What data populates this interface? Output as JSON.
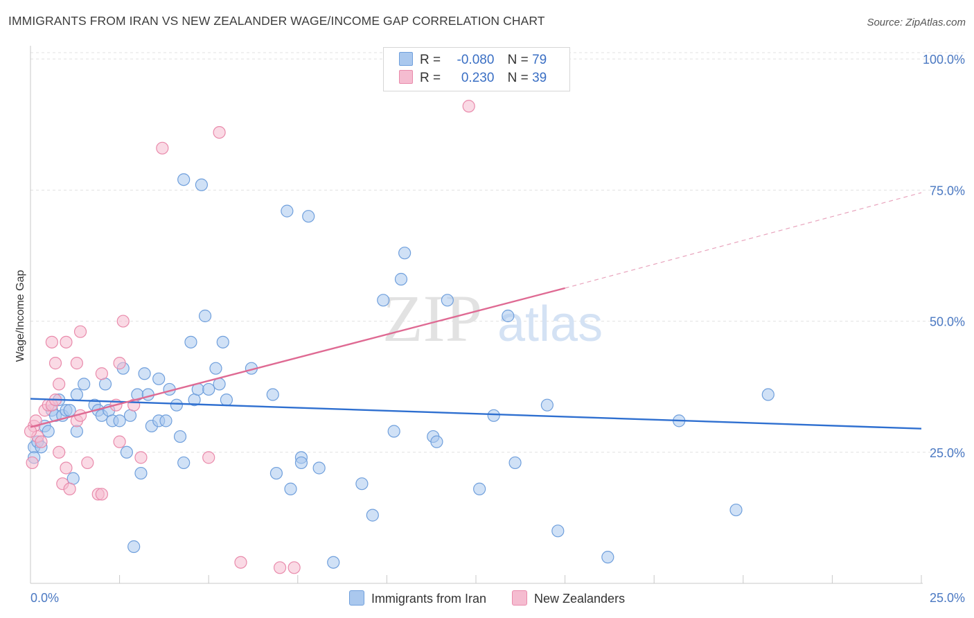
{
  "title": "IMMIGRANTS FROM IRAN VS NEW ZEALANDER WAGE/INCOME GAP CORRELATION CHART",
  "source": "Source: ZipAtlas.com",
  "watermark": {
    "zip": "ZIP",
    "atlas": "atlas"
  },
  "legend": {
    "rows": [
      {
        "r_label": "R =",
        "r_value": "-0.080",
        "n_label": "N =",
        "n_value": "79",
        "color": "#aac8ee",
        "border": "#6f9fdc"
      },
      {
        "r_label": "R =",
        "r_value": "0.230",
        "n_label": "N =",
        "n_value": "39",
        "color": "#f5bcd0",
        "border": "#e98aab"
      }
    ]
  },
  "bottom_legend": [
    {
      "label": "Immigrants from Iran",
      "color": "#aac8ee",
      "border": "#6f9fdc"
    },
    {
      "label": "New Zealanders",
      "color": "#f5bcd0",
      "border": "#e98aab"
    }
  ],
  "chart_data": {
    "type": "scatter",
    "title": "IMMIGRANTS FROM IRAN VS NEW ZEALANDER WAGE/INCOME GAP CORRELATION CHART",
    "xlabel": "",
    "ylabel": "Wage/Income Gap",
    "xlim": [
      0,
      25
    ],
    "ylim": [
      0,
      102
    ],
    "x_tick_labels": [
      "0.0%",
      "25.0%"
    ],
    "y_ticks": [
      25,
      50,
      75,
      100
    ],
    "y_tick_labels": [
      "25.0%",
      "50.0%",
      "75.0%",
      "100.0%"
    ],
    "grid": true,
    "series": [
      {
        "name": "Immigrants from Iran",
        "color": "#6f9fdc",
        "fill": "#aac8ee",
        "points": [
          [
            0.1,
            26
          ],
          [
            0.2,
            27
          ],
          [
            0.3,
            26
          ],
          [
            0.4,
            30
          ],
          [
            0.5,
            29
          ],
          [
            0.6,
            33
          ],
          [
            0.7,
            32
          ],
          [
            0.8,
            35
          ],
          [
            0.9,
            32
          ],
          [
            1.0,
            33
          ],
          [
            1.1,
            33
          ],
          [
            1.2,
            20
          ],
          [
            1.3,
            29
          ],
          [
            1.3,
            36
          ],
          [
            1.5,
            38
          ],
          [
            1.8,
            34
          ],
          [
            1.9,
            33
          ],
          [
            2.0,
            32
          ],
          [
            2.1,
            38
          ],
          [
            2.2,
            33
          ],
          [
            2.3,
            31
          ],
          [
            2.5,
            31
          ],
          [
            2.6,
            41
          ],
          [
            2.7,
            25
          ],
          [
            2.8,
            32
          ],
          [
            2.9,
            7
          ],
          [
            3.0,
            36
          ],
          [
            3.1,
            21
          ],
          [
            3.2,
            40
          ],
          [
            3.3,
            36
          ],
          [
            3.4,
            30
          ],
          [
            3.6,
            31
          ],
          [
            3.6,
            39
          ],
          [
            3.8,
            31
          ],
          [
            3.9,
            37
          ],
          [
            4.1,
            34
          ],
          [
            4.2,
            28
          ],
          [
            4.3,
            23
          ],
          [
            4.3,
            77
          ],
          [
            4.5,
            46
          ],
          [
            4.6,
            35
          ],
          [
            4.7,
            37
          ],
          [
            4.8,
            76
          ],
          [
            4.9,
            51
          ],
          [
            5.0,
            37
          ],
          [
            5.2,
            41
          ],
          [
            5.3,
            38
          ],
          [
            5.4,
            46
          ],
          [
            5.5,
            35
          ],
          [
            6.2,
            41
          ],
          [
            6.8,
            36
          ],
          [
            6.9,
            21
          ],
          [
            7.2,
            71
          ],
          [
            7.3,
            18
          ],
          [
            7.6,
            24
          ],
          [
            7.6,
            23
          ],
          [
            7.8,
            70
          ],
          [
            8.1,
            22
          ],
          [
            8.5,
            4
          ],
          [
            9.3,
            19
          ],
          [
            9.6,
            13
          ],
          [
            9.9,
            54
          ],
          [
            10.2,
            29
          ],
          [
            10.4,
            58
          ],
          [
            10.5,
            63
          ],
          [
            11.3,
            28
          ],
          [
            11.4,
            27
          ],
          [
            11.7,
            54
          ],
          [
            12.6,
            18
          ],
          [
            13.0,
            32
          ],
          [
            13.4,
            51
          ],
          [
            13.6,
            23
          ],
          [
            14.5,
            34
          ],
          [
            14.8,
            10
          ],
          [
            16.2,
            5
          ],
          [
            18.2,
            31
          ],
          [
            19.8,
            14
          ],
          [
            20.7,
            36
          ],
          [
            0.1,
            24
          ]
        ]
      },
      {
        "name": "New Zealanders",
        "color": "#e98aab",
        "fill": "#f5bcd0",
        "points": [
          [
            0.05,
            23
          ],
          [
            0.1,
            30
          ],
          [
            0.15,
            31
          ],
          [
            0.2,
            28
          ],
          [
            0.3,
            27
          ],
          [
            0.4,
            33
          ],
          [
            0.5,
            34
          ],
          [
            0.6,
            34
          ],
          [
            0.6,
            46
          ],
          [
            0.7,
            35
          ],
          [
            0.7,
            42
          ],
          [
            0.8,
            25
          ],
          [
            0.8,
            38
          ],
          [
            0.9,
            19
          ],
          [
            1.0,
            46
          ],
          [
            1.0,
            22
          ],
          [
            1.1,
            18
          ],
          [
            1.3,
            42
          ],
          [
            1.3,
            31
          ],
          [
            1.4,
            32
          ],
          [
            1.4,
            48
          ],
          [
            1.6,
            23
          ],
          [
            1.9,
            17
          ],
          [
            2.0,
            17
          ],
          [
            2.0,
            40
          ],
          [
            2.4,
            34
          ],
          [
            2.5,
            42
          ],
          [
            2.5,
            27
          ],
          [
            2.6,
            50
          ],
          [
            2.9,
            34
          ],
          [
            3.1,
            24
          ],
          [
            3.7,
            83
          ],
          [
            5.0,
            24
          ],
          [
            5.3,
            86
          ],
          [
            5.9,
            4
          ],
          [
            7.0,
            3
          ],
          [
            7.4,
            3
          ],
          [
            12.3,
            91
          ],
          [
            0.0,
            29
          ]
        ]
      }
    ],
    "trend_lines": [
      {
        "series": "Immigrants from Iran",
        "x": [
          0,
          25
        ],
        "y": [
          35.2,
          29.5
        ],
        "color": "#2e6fd0"
      },
      {
        "series": "New Zealanders",
        "x": [
          0,
          15
        ],
        "y": [
          29.8,
          56.3
        ],
        "color": "#df6a93"
      },
      {
        "series": "New Zealanders",
        "x": [
          15,
          25
        ],
        "y": [
          56.3,
          74.5
        ],
        "color": "#e8a3bc",
        "dashed": true
      }
    ]
  }
}
